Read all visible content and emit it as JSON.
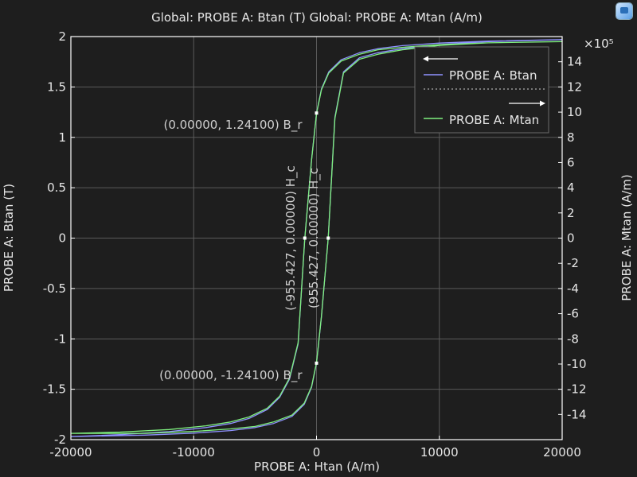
{
  "title": "Global: PROBE A: Btan (T)  Global: PROBE A: Mtan (A/m)",
  "icons": {
    "corner": "comsol-plot-icon"
  },
  "colors": {
    "background": "#1e1e1e",
    "grid": "#5a5a5a",
    "frame": "#ffffff",
    "btan": "#8f92ff",
    "mtan": "#7ff07f",
    "text": "#e6e6e6"
  },
  "chart_data": {
    "type": "line",
    "xlabel": "PROBE A: Htan (A/m)",
    "ylabel_left": "PROBE A: Btan (T)",
    "ylabel_right": "PROBE A: Mtan (A/m)",
    "right_multiplier": "×10⁵",
    "xlim": [
      -20000,
      20000
    ],
    "ylim_left": [
      -2,
      2
    ],
    "ylim_right": [
      -16,
      16
    ],
    "x_ticks": [
      -20000,
      -10000,
      0,
      10000,
      20000
    ],
    "x_tick_labels": [
      "-20000",
      "-10000",
      "0",
      "10000",
      "20000"
    ],
    "y_left_ticks": [
      -2,
      -1.5,
      -1,
      -0.5,
      0,
      0.5,
      1,
      1.5,
      2
    ],
    "y_left_tick_labels": [
      "-2",
      "-1.5",
      "-1",
      "-0.5",
      "0",
      "0.5",
      "1",
      "1.5",
      "2"
    ],
    "y_right_ticks": [
      -14,
      -12,
      -10,
      -8,
      -6,
      -4,
      -2,
      0,
      2,
      4,
      6,
      8,
      10,
      12,
      14
    ],
    "y_right_tick_labels": [
      "-14",
      "-12",
      "-10",
      "-8",
      "-6",
      "-4",
      "-2",
      "0",
      "2",
      "4",
      "6",
      "8",
      "10",
      "12",
      "14"
    ],
    "grid": true,
    "legend": {
      "placement": "top-right",
      "entries": [
        "PROBE A: Btan",
        "PROBE A: Mtan"
      ],
      "axis_arrows": [
        "left",
        "right"
      ]
    },
    "series": [
      {
        "name": "PROBE A: Btan",
        "axis": "left",
        "color": "#8f92ff",
        "x": [
          -20000,
          -16000,
          -12000,
          -9000,
          -7000,
          -5500,
          -4000,
          -3000,
          -2200,
          -1500,
          -955.427,
          -400,
          0,
          400,
          1000,
          2000,
          3500,
          5000,
          7000,
          10000,
          14000,
          20000,
          20000,
          14000,
          10000,
          7000,
          5000,
          3500,
          2200,
          1500,
          955.427,
          400,
          0,
          -400,
          -1000,
          -2000,
          -3500,
          -5000,
          -7000,
          -10000,
          -14000,
          -20000
        ],
        "y": [
          -1.97,
          -1.95,
          -1.92,
          -1.88,
          -1.84,
          -1.79,
          -1.7,
          -1.58,
          -1.4,
          -1.05,
          0,
          0.78,
          1.241,
          1.48,
          1.65,
          1.77,
          1.84,
          1.88,
          1.91,
          1.935,
          1.955,
          1.97,
          1.97,
          1.95,
          1.92,
          1.88,
          1.84,
          1.79,
          1.65,
          1.2,
          0,
          -0.78,
          -1.241,
          -1.48,
          -1.65,
          -1.77,
          -1.84,
          -1.88,
          -1.91,
          -1.935,
          -1.955,
          -1.97
        ]
      },
      {
        "name": "PROBE A: Mtan",
        "axis": "right",
        "color": "#7ff07f",
        "x": [
          -20000,
          -16000,
          -12000,
          -9000,
          -7000,
          -5500,
          -4000,
          -3000,
          -2200,
          -1500,
          -955.427,
          -400,
          0,
          400,
          1000,
          2000,
          3500,
          5000,
          7000,
          10000,
          14000,
          20000,
          20000,
          14000,
          10000,
          7000,
          5000,
          3500,
          2200,
          1500,
          955.427,
          400,
          0,
          -400,
          -1000,
          -2000,
          -3500,
          -5000,
          -7000,
          -10000,
          -14000,
          -20000
        ],
        "y": [
          -15.5,
          -15.4,
          -15.2,
          -14.9,
          -14.6,
          -14.2,
          -13.5,
          -12.55,
          -11.1,
          -8.3,
          0,
          6.2,
          9.88,
          11.78,
          13.1,
          14.05,
          14.6,
          14.95,
          15.15,
          15.35,
          15.5,
          15.6,
          15.6,
          15.5,
          15.3,
          14.95,
          14.6,
          14.2,
          13.1,
          9.5,
          0,
          -6.2,
          -9.88,
          -11.78,
          -13.1,
          -14.05,
          -14.6,
          -14.95,
          -15.15,
          -15.35,
          -15.5,
          -15.5
        ]
      }
    ],
    "annotations": [
      {
        "text": "(0.00000, 1.24100) B_r",
        "x": 0,
        "y": 1.241,
        "orientation": "horizontal",
        "align": "left-of-point"
      },
      {
        "text": "(0.00000, -1.24100) B_r",
        "x": 0,
        "y": -1.241,
        "orientation": "horizontal",
        "align": "left-of-point"
      },
      {
        "text": "(-955.427, 0.00000) H_c",
        "x": -955.427,
        "y": 0,
        "orientation": "vertical",
        "align": "left-of-point"
      },
      {
        "text": "(955.427, 0.00000) H_c",
        "x": 955.427,
        "y": 0,
        "orientation": "vertical",
        "align": "left-of-point"
      }
    ]
  }
}
